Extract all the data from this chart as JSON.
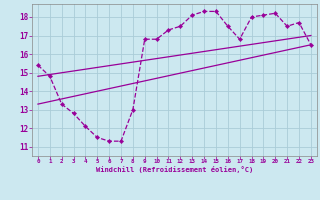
{
  "bg_color": "#cce8f0",
  "grid_color": "#aaccd8",
  "line_color": "#990099",
  "xlim": [
    -0.5,
    23.5
  ],
  "ylim": [
    10.5,
    18.7
  ],
  "yticks": [
    11,
    12,
    13,
    14,
    15,
    16,
    17,
    18
  ],
  "xticks": [
    0,
    1,
    2,
    3,
    4,
    5,
    6,
    7,
    8,
    9,
    10,
    11,
    12,
    13,
    14,
    15,
    16,
    17,
    18,
    19,
    20,
    21,
    22,
    23
  ],
  "xlabel": "Windchill (Refroidissement éolien,°C)",
  "series_main_x": [
    0,
    1,
    2,
    3,
    4,
    5,
    6,
    7,
    8,
    9,
    10,
    11,
    12,
    13,
    14,
    15,
    16,
    17,
    18,
    19,
    20,
    21,
    22,
    23
  ],
  "series_main_y": [
    15.4,
    14.8,
    13.3,
    12.8,
    12.1,
    11.5,
    11.3,
    11.3,
    13.0,
    16.8,
    16.8,
    17.3,
    17.5,
    18.1,
    18.3,
    18.3,
    17.5,
    16.8,
    18.0,
    18.1,
    18.2,
    17.5,
    17.7,
    16.5
  ],
  "line1_x": [
    0,
    23
  ],
  "line1_y": [
    13.3,
    16.5
  ],
  "line2_x": [
    0,
    23
  ],
  "line2_y": [
    14.8,
    17.0
  ]
}
